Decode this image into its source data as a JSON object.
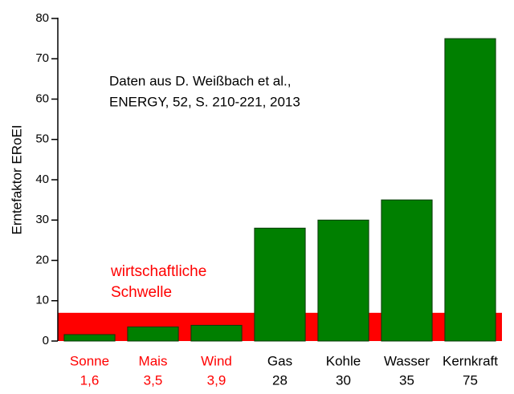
{
  "chart_data": {
    "type": "bar",
    "categories": [
      "Sonne",
      "Mais",
      "Wind",
      "Gas",
      "Kohle",
      "Wasser",
      "Kernkraft"
    ],
    "values": [
      1.6,
      3.5,
      3.9,
      28,
      30,
      35,
      75
    ],
    "value_labels": [
      "1,6",
      "3,5",
      "3,9",
      "28",
      "30",
      "35",
      "75"
    ],
    "label_colors": [
      "#ff0000",
      "#ff0000",
      "#ff0000",
      "#000000",
      "#000000",
      "#000000",
      "#000000"
    ],
    "color": "#007f00",
    "y_label": "Erntefaktor ERoEI",
    "ylim": [
      0,
      80
    ],
    "yticks": [
      0,
      10,
      20,
      30,
      40,
      50,
      60,
      70,
      80
    ],
    "threshold": 7,
    "threshold_color": "#ff0000",
    "threshold_label": [
      "wirtschaftliche",
      "Schwelle"
    ],
    "annotation": [
      "Daten aus D. Weißbach et al.,",
      "ENERGY, 52, S. 210-221, 2013"
    ]
  }
}
